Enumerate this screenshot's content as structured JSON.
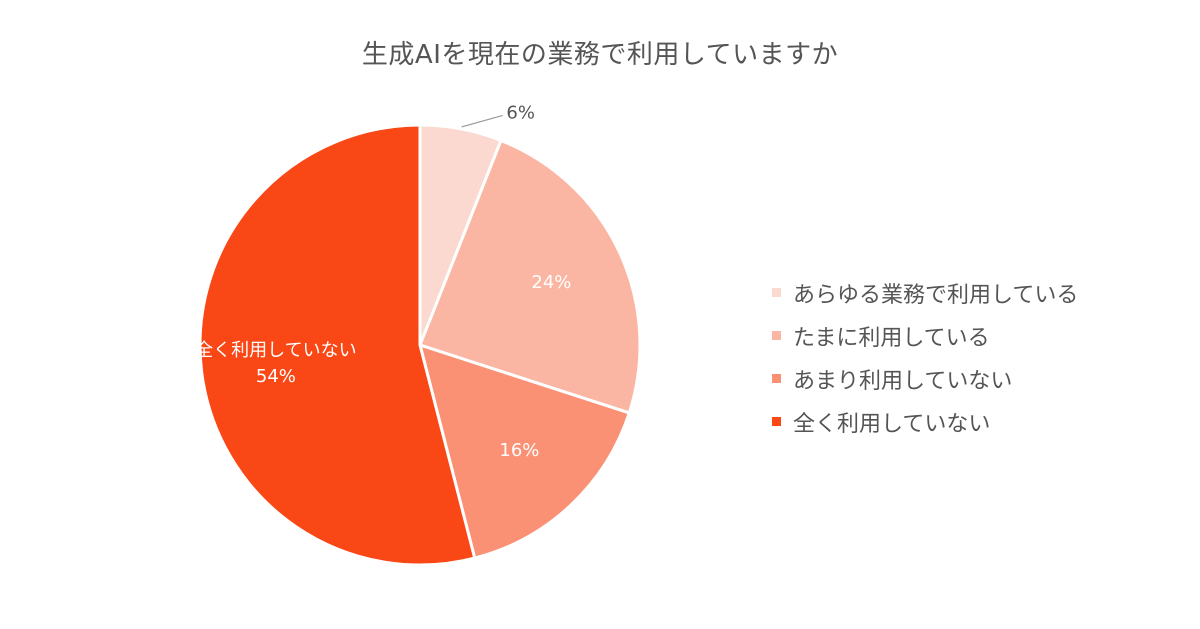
{
  "chart_data": {
    "type": "pie",
    "title": "生成AIを現在の業務で利用していますか",
    "slices": [
      {
        "label": "あらゆる業務で利用している",
        "value": 6,
        "value_label": "6%",
        "color": "#FBD9D0",
        "label_color": "#555555",
        "legend": "あらゆる業務で利用している",
        "data_label_category": ""
      },
      {
        "label": "たまに利用している",
        "value": 24,
        "value_label": "24%",
        "color": "#FBB6A3",
        "label_color": "#ffffff",
        "legend": "たまに利用している",
        "data_label_category": ""
      },
      {
        "label": "あまり利用していない",
        "value": 16,
        "value_label": "16%",
        "color": "#FA9175",
        "label_color": "#ffffff",
        "legend": "あまり利用していない",
        "data_label_category": ""
      },
      {
        "label": "全く利用していない",
        "value": 54,
        "value_label": "54%",
        "color": "#FA4716",
        "label_color": "#ffffff",
        "legend": "全く利用していない",
        "data_label_category": "全く利用していない"
      }
    ],
    "legend_position": "right",
    "start_angle_deg": 0,
    "direction": "clockwise"
  }
}
